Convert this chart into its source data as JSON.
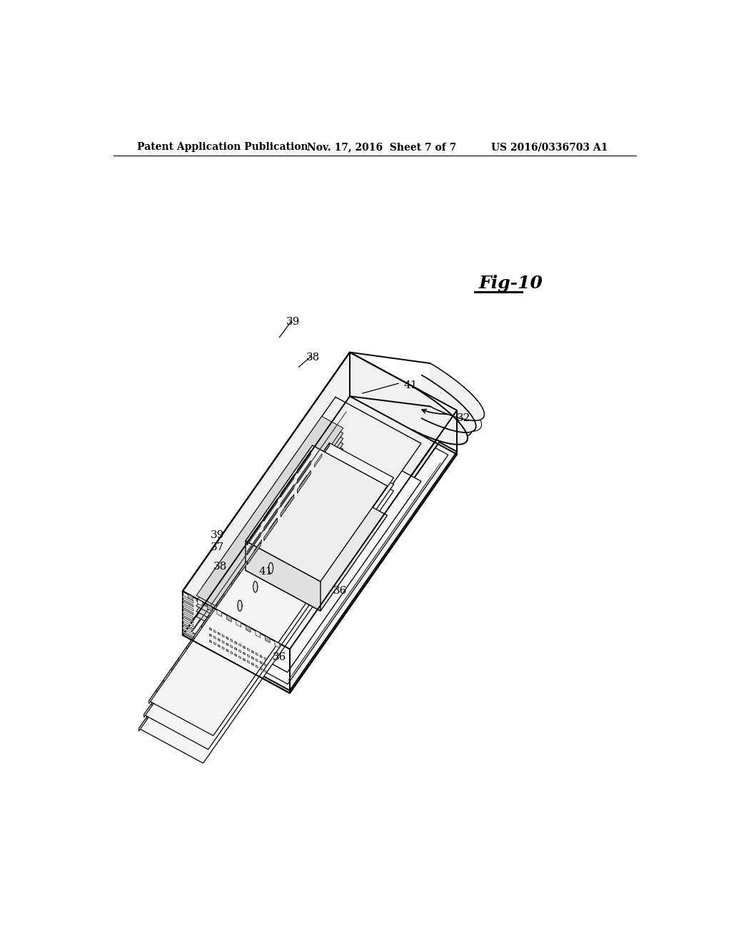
{
  "background_color": "#ffffff",
  "header_left": "Patent Application Publication",
  "header_middle": "Nov. 17, 2016  Sheet 7 of 7",
  "header_right": "US 2016/0336703 A1",
  "fig_label": "Fig-10",
  "line_color": "#000000",
  "text_color": "#000000",
  "page_width": 10.24,
  "page_height": 13.2,
  "hatch_color": "#888888",
  "fill_light": "#f5f5f5",
  "fill_mid": "#e8e8e8",
  "fill_dark": "#d0d0d0"
}
